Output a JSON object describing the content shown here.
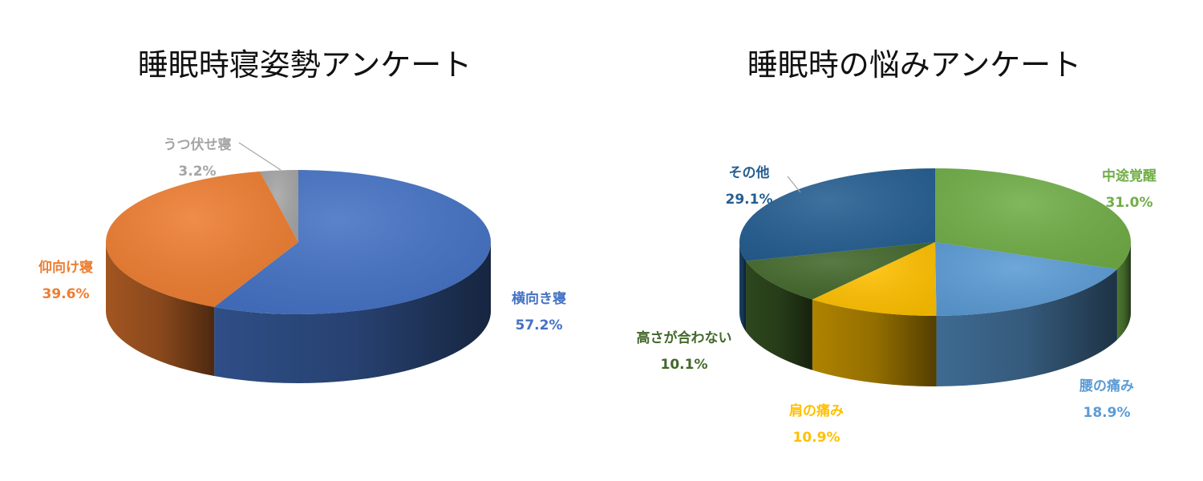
{
  "colors": {
    "title": "#111111"
  },
  "chart_data": [
    {
      "type": "pie",
      "title": "睡眠時寝姿勢アンケート",
      "slices": [
        {
          "label": "横向き寝",
          "value": 57.2,
          "value_label": "57.2%",
          "color": "#4472C4"
        },
        {
          "label": "仰向け寝",
          "value": 39.6,
          "value_label": "39.6%",
          "color": "#ED7D31"
        },
        {
          "label": "うつ伏せ寝",
          "value": 3.2,
          "value_label": "3.2%",
          "color": "#A5A5A5"
        }
      ]
    },
    {
      "type": "pie",
      "title": "睡眠時の悩みアンケート",
      "slices": [
        {
          "label": "中途覚醒",
          "value": 31.0,
          "value_label": "31.0%",
          "color": "#70AD47"
        },
        {
          "label": "腰の痛み",
          "value": 18.9,
          "value_label": "18.9%",
          "color": "#5B9BD5"
        },
        {
          "label": "肩の痛み",
          "value": 10.9,
          "value_label": "10.9%",
          "color": "#FFC000"
        },
        {
          "label": "高さが合わない",
          "value": 10.1,
          "value_label": "10.1%",
          "color": "#43682B"
        },
        {
          "label": "その他",
          "value": 29.1,
          "value_label": "29.1%",
          "color": "#255E91"
        }
      ]
    }
  ]
}
